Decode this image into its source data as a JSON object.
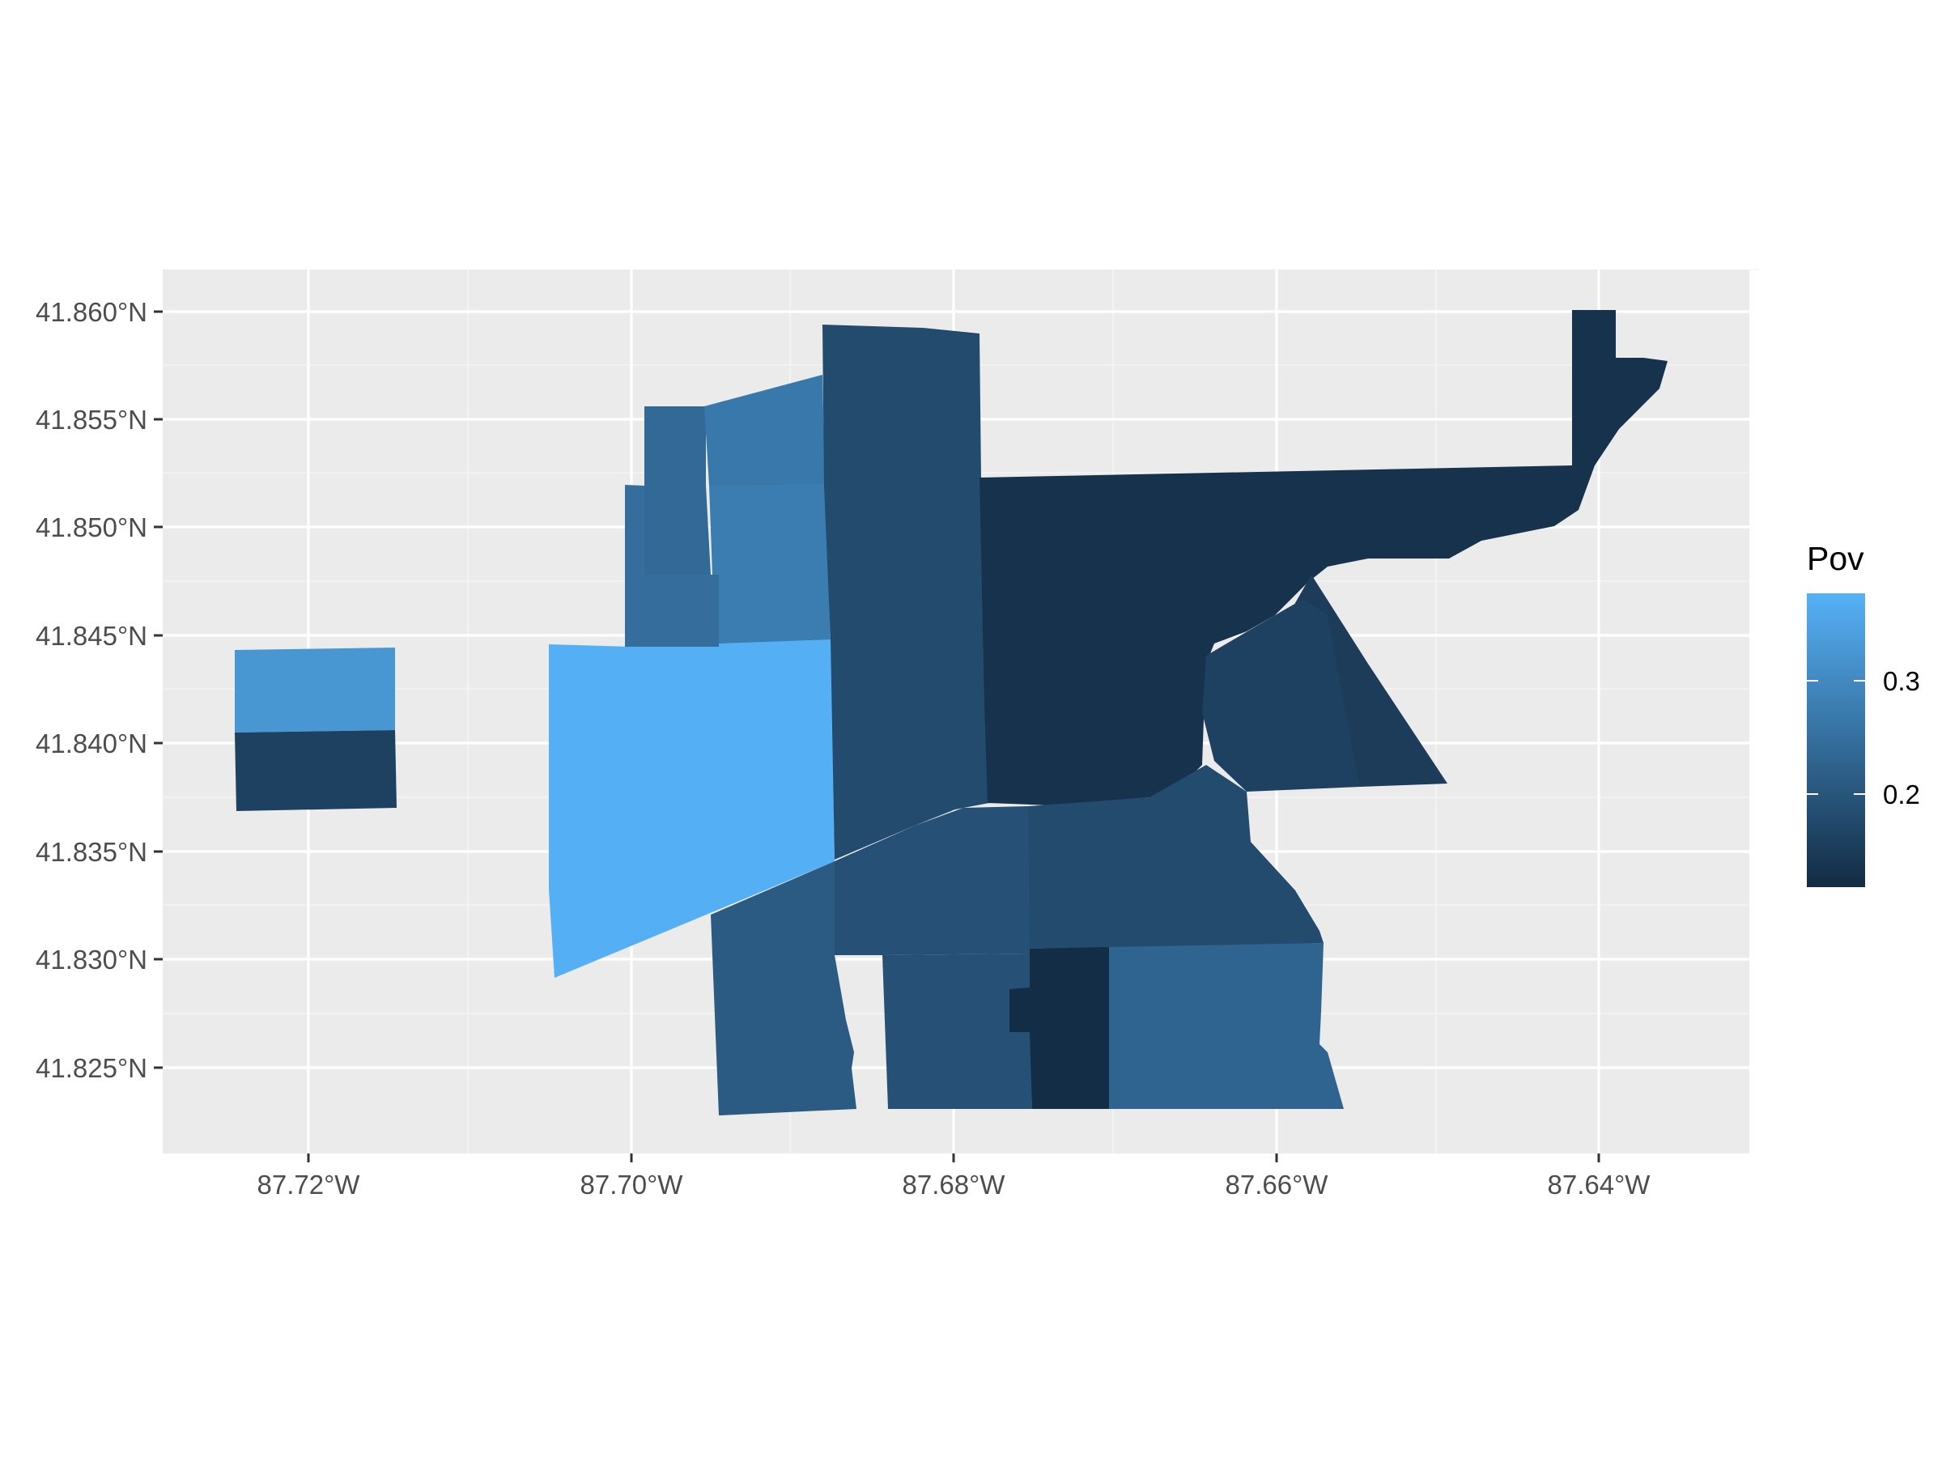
{
  "map": {
    "x_tick_labels": [
      "87.72°W",
      "87.70°W",
      "87.68°W",
      "87.66°W",
      "87.64°W"
    ],
    "y_tick_labels": [
      "41.860°N",
      "41.855°N",
      "41.850°N",
      "41.845°N",
      "41.840°N",
      "41.835°N",
      "41.830°N",
      "41.825°N"
    ],
    "grid": true,
    "panel_background": "#ebebeb"
  },
  "legend": {
    "title": "Pov",
    "labels": [
      "0.3",
      "0.2"
    ],
    "placement": "right",
    "color_low": "#132b43",
    "color_high": "#56b1f7"
  },
  "regions": [
    {
      "id": "far-west-north",
      "pov": 0.33
    },
    {
      "id": "far-west-south",
      "pov": 0.16
    },
    {
      "id": "west-large",
      "pov": 0.38
    },
    {
      "id": "northwest-top",
      "pov": 0.25
    },
    {
      "id": "northwest-mid",
      "pov": 0.24
    },
    {
      "id": "northwest-slanted",
      "pov": 0.27
    },
    {
      "id": "northwest-inner",
      "pov": 0.28
    },
    {
      "id": "north-central-strip",
      "pov": 0.18
    },
    {
      "id": "northeast-large",
      "pov": 0.13
    },
    {
      "id": "east-triangle",
      "pov": 0.15
    },
    {
      "id": "east-inner",
      "pov": 0.16
    },
    {
      "id": "south-center-east",
      "pov": 0.18
    },
    {
      "id": "south-center",
      "pov": 0.19
    },
    {
      "id": "southwest",
      "pov": 0.21
    },
    {
      "id": "south-mid",
      "pov": 0.19
    },
    {
      "id": "south-narrow",
      "pov": 0.12
    },
    {
      "id": "south-east",
      "pov": 0.23
    }
  ]
}
